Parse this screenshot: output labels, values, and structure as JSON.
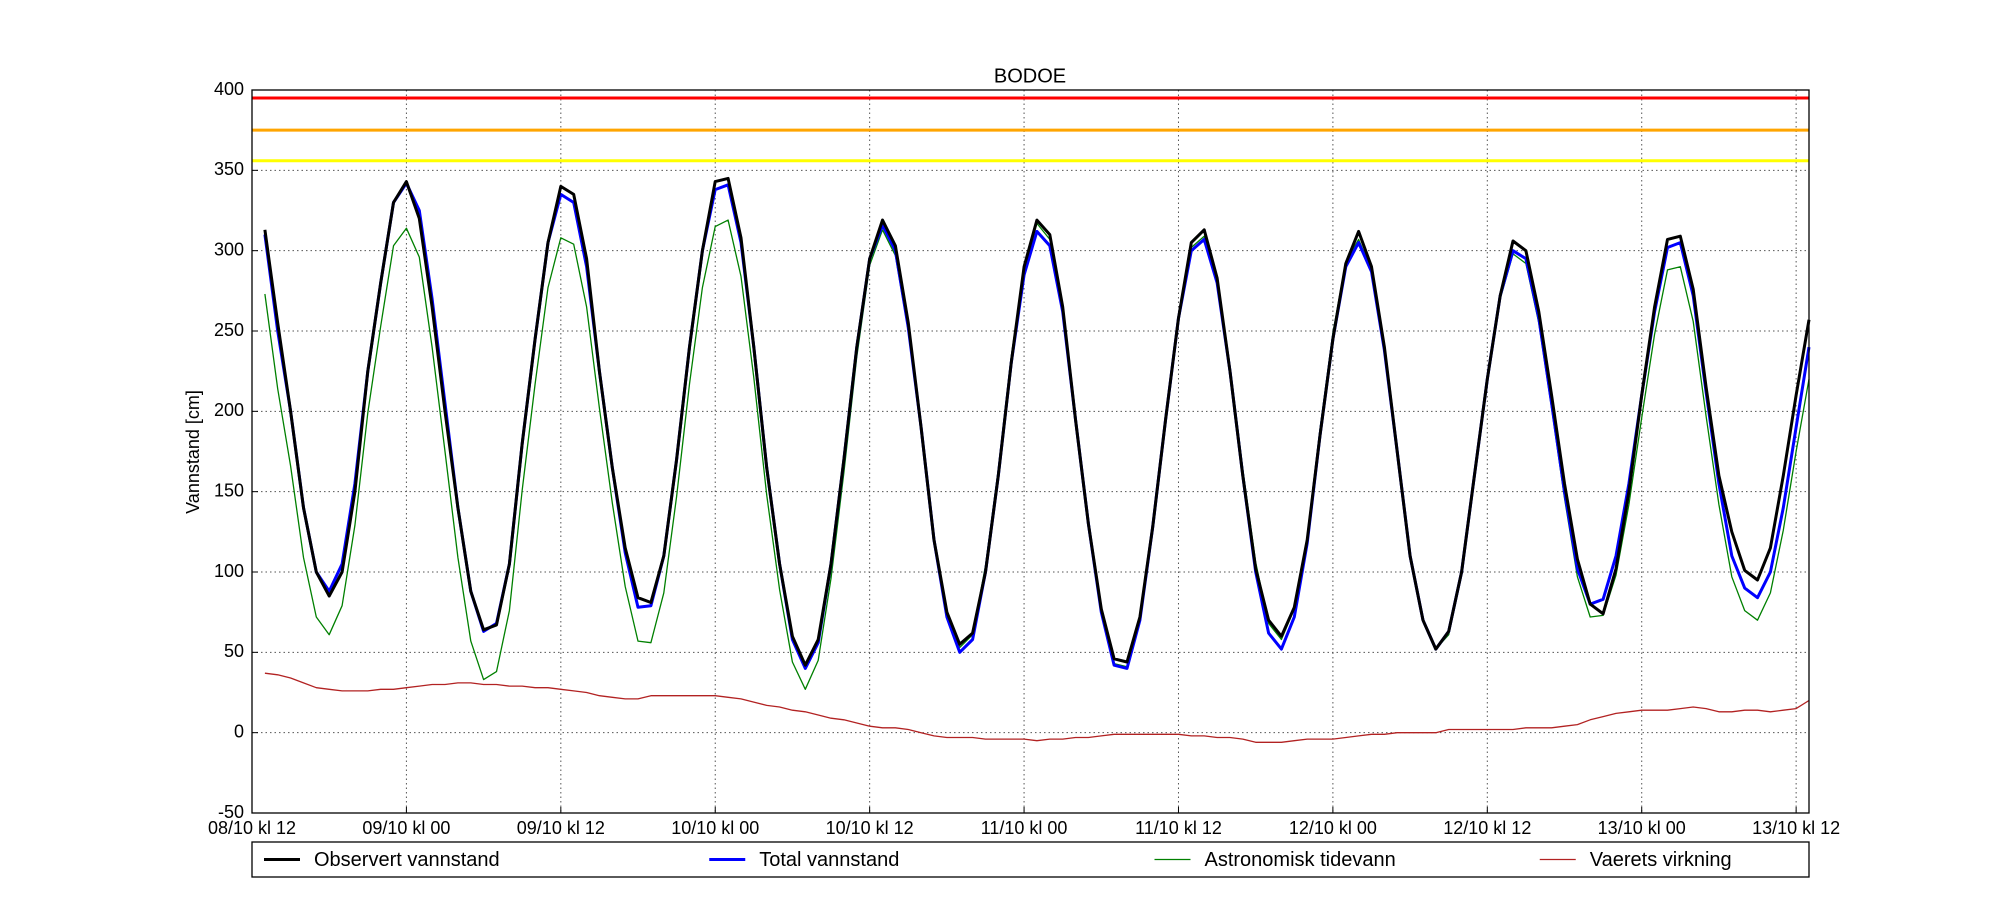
{
  "chart_data": {
    "type": "line",
    "title": "BODOE",
    "y_label": "Vannstand [cm]",
    "x": [
      1,
      2,
      3,
      4,
      5,
      6,
      7,
      8,
      9,
      10,
      11,
      12,
      13,
      14,
      15,
      16,
      17,
      18,
      19,
      20,
      21,
      22,
      23,
      24,
      25,
      26,
      27,
      28,
      29,
      30,
      31,
      32,
      33,
      34,
      35,
      36,
      37,
      38,
      39,
      40,
      41,
      42,
      43,
      44,
      45,
      46,
      47,
      48,
      49,
      50,
      51,
      52,
      53,
      54,
      55,
      56,
      57,
      58,
      59,
      60,
      61,
      62,
      63,
      64,
      65,
      66,
      67,
      68,
      69,
      70,
      71,
      72,
      73,
      74,
      75,
      76,
      77,
      78,
      79,
      80,
      81,
      82,
      83,
      84,
      85,
      86,
      87,
      88,
      89,
      90,
      91,
      92,
      93,
      94,
      95,
      96,
      97,
      98,
      99,
      100,
      101,
      102,
      103,
      104,
      105,
      106,
      107,
      108,
      109,
      110,
      111,
      112,
      113,
      114,
      115,
      116,
      117,
      118,
      119,
      120,
      121
    ],
    "xlim": [
      0,
      121
    ],
    "xticks": [
      {
        "value": 0,
        "label": "08/10 kl 12"
      },
      {
        "value": 12,
        "label": "09/10 kl 00"
      },
      {
        "value": 24,
        "label": "09/10 kl 12"
      },
      {
        "value": 36,
        "label": "10/10 kl 00"
      },
      {
        "value": 48,
        "label": "10/10 kl 12"
      },
      {
        "value": 60,
        "label": "11/10 kl 00"
      },
      {
        "value": 72,
        "label": "11/10 kl 12"
      },
      {
        "value": 84,
        "label": "12/10 kl 00"
      },
      {
        "value": 96,
        "label": "12/10 kl 12"
      },
      {
        "value": 108,
        "label": "13/10 kl 00"
      },
      {
        "value": 120,
        "label": "13/10 kl 12"
      }
    ],
    "ylim": [
      -50,
      400
    ],
    "yticks": [
      -50,
      0,
      50,
      100,
      150,
      200,
      250,
      300,
      350,
      400
    ],
    "grid": true,
    "legend": "bottom",
    "reference_lines": [
      {
        "value": 395,
        "color": "#ff0000"
      },
      {
        "value": 375,
        "color": "#ffa500"
      },
      {
        "value": 356,
        "color": "#ffff00"
      }
    ],
    "series": [
      {
        "name": "Observert vannstand",
        "color": "#000000",
        "width": 3,
        "values": [
          313,
          255,
          200,
          140,
          100,
          85,
          100,
          150,
          225,
          280,
          330,
          343,
          320,
          265,
          200,
          140,
          88,
          64,
          67,
          105,
          180,
          245,
          305,
          340,
          335,
          295,
          225,
          165,
          115,
          84,
          81,
          110,
          170,
          240,
          300,
          343,
          345,
          308,
          240,
          165,
          105,
          60,
          42,
          58,
          105,
          170,
          240,
          295,
          319,
          303,
          255,
          190,
          120,
          75,
          55,
          62,
          100,
          160,
          230,
          290,
          319,
          310,
          265,
          195,
          130,
          77,
          46,
          44,
          72,
          128,
          195,
          258,
          305,
          313,
          283,
          225,
          160,
          102,
          70,
          60,
          78,
          120,
          185,
          245,
          292,
          312,
          290,
          240,
          175,
          110,
          70,
          52,
          63,
          100,
          160,
          220,
          272,
          306,
          300,
          262,
          210,
          155,
          108,
          80,
          74,
          102,
          150,
          210,
          265,
          307,
          309,
          276,
          215,
          160,
          125,
          101,
          95,
          115,
          160,
          210,
          257
        ]
      },
      {
        "name": "Total vannstand",
        "color": "#0000ff",
        "width": 3,
        "values": [
          310,
          250,
          200,
          140,
          100,
          88,
          105,
          155,
          225,
          280,
          330,
          342,
          325,
          270,
          205,
          140,
          88,
          63,
          68,
          105,
          180,
          245,
          305,
          335,
          330,
          290,
          225,
          165,
          112,
          78,
          79,
          110,
          170,
          240,
          300,
          338,
          341,
          305,
          240,
          165,
          105,
          58,
          40,
          56,
          105,
          170,
          240,
          295,
          316,
          300,
          252,
          190,
          120,
          72,
          50,
          58,
          100,
          160,
          230,
          285,
          312,
          303,
          262,
          195,
          130,
          75,
          42,
          40,
          70,
          128,
          195,
          258,
          300,
          307,
          280,
          225,
          160,
          100,
          62,
          52,
          72,
          118,
          185,
          245,
          290,
          305,
          287,
          238,
          175,
          110,
          70,
          52,
          63,
          100,
          160,
          220,
          272,
          300,
          295,
          258,
          205,
          150,
          102,
          80,
          83,
          110,
          155,
          210,
          262,
          302,
          305,
          272,
          212,
          155,
          110,
          90,
          84,
          100,
          140,
          190,
          240
        ]
      },
      {
        "name": "Astronomisk tidevann",
        "color": "#008000",
        "width": 1.3,
        "values": [
          273,
          214,
          166,
          109,
          72,
          61,
          79,
          129,
          199,
          253,
          303,
          314,
          296,
          240,
          175,
          109,
          57,
          33,
          38,
          76,
          151,
          217,
          277,
          308,
          304,
          265,
          202,
          143,
          91,
          57,
          56,
          87,
          147,
          217,
          277,
          315,
          319,
          284,
          221,
          148,
          89,
          44,
          27,
          45,
          96,
          162,
          234,
          291,
          313,
          297,
          250,
          190,
          122,
          75,
          53,
          61,
          104,
          164,
          234,
          289,
          317,
          307,
          266,
          198,
          133,
          77,
          43,
          41,
          71,
          129,
          196,
          259,
          302,
          309,
          283,
          228,
          164,
          106,
          68,
          58,
          77,
          122,
          189,
          249,
          293,
          307,
          288,
          239,
          175,
          110,
          70,
          52,
          61,
          98,
          158,
          218,
          270,
          298,
          292,
          255,
          202,
          146,
          97,
          72,
          73,
          98,
          142,
          196,
          248,
          288,
          290,
          256,
          197,
          142,
          97,
          76,
          70,
          87,
          126,
          175,
          220
        ]
      },
      {
        "name": "Vaerets virkning",
        "color": "#b22222",
        "width": 1.3,
        "values": [
          37,
          36,
          34,
          31,
          28,
          27,
          26,
          26,
          26,
          27,
          27,
          28,
          29,
          30,
          30,
          31,
          31,
          30,
          30,
          29,
          29,
          28,
          28,
          27,
          26,
          25,
          23,
          22,
          21,
          21,
          23,
          23,
          23,
          23,
          23,
          23,
          22,
          21,
          19,
          17,
          16,
          14,
          13,
          11,
          9,
          8,
          6,
          4,
          3,
          3,
          2,
          0,
          -2,
          -3,
          -3,
          -3,
          -4,
          -4,
          -4,
          -4,
          -5,
          -4,
          -4,
          -3,
          -3,
          -2,
          -1,
          -1,
          -1,
          -1,
          -1,
          -1,
          -2,
          -2,
          -3,
          -3,
          -4,
          -6,
          -6,
          -6,
          -5,
          -4,
          -4,
          -4,
          -3,
          -2,
          -1,
          -1,
          0,
          0,
          0,
          0,
          2,
          2,
          2,
          2,
          2,
          2,
          3,
          3,
          3,
          4,
          5,
          8,
          10,
          12,
          13,
          14,
          14,
          14,
          15,
          16,
          15,
          13,
          13,
          14,
          14,
          13,
          14,
          15,
          20
        ]
      }
    ]
  }
}
